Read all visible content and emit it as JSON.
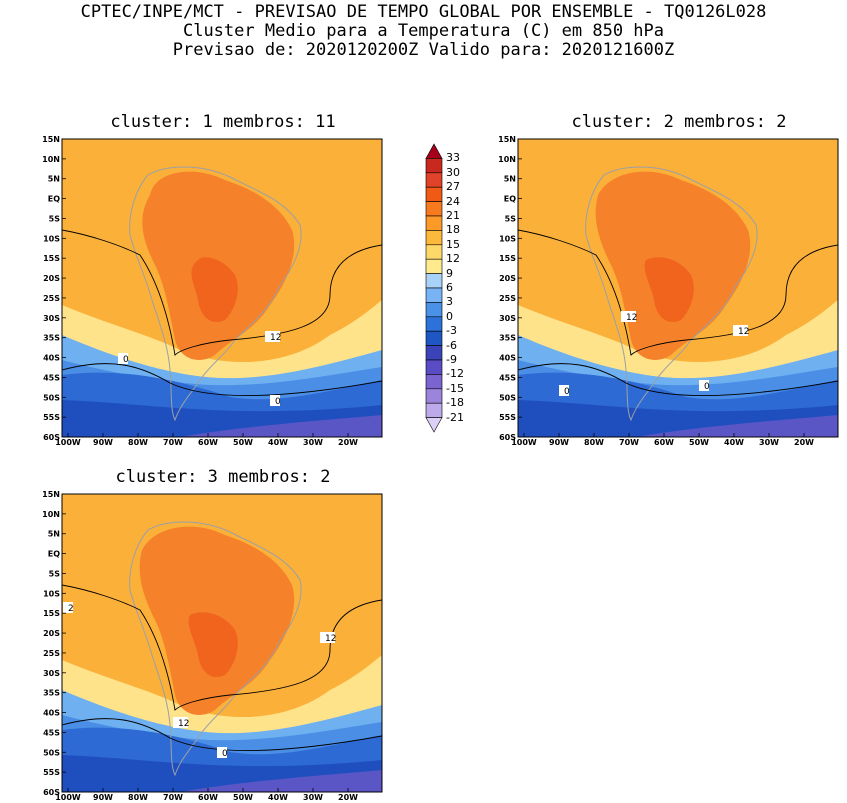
{
  "header": {
    "line1": "CPTEC/INPE/MCT - PREVISAO DE TEMPO GLOBAL POR ENSEMBLE - TQ0126L028",
    "line2": "Cluster Medio para a Temperatura (C) em 850 hPa",
    "line3": "Previsao de: 2020120200Z   Valido para: 2020121600Z"
  },
  "panels": [
    {
      "title": "cluster: 1  membros: 11",
      "contour_labels": [
        "12",
        "0",
        "0"
      ]
    },
    {
      "title": "cluster: 2  membros: 2",
      "contour_labels": [
        "12",
        "12",
        "0",
        "0"
      ]
    },
    {
      "title": "cluster: 3  membros: 2",
      "contour_labels": [
        "2",
        "12",
        "12",
        "0"
      ]
    }
  ],
  "axes": {
    "lat_ticks": [
      "15N",
      "10N",
      "5N",
      "EQ",
      "5S",
      "10S",
      "15S",
      "20S",
      "25S",
      "30S",
      "35S",
      "40S",
      "45S",
      "50S",
      "55S",
      "60S"
    ],
    "lon_ticks": [
      "100W",
      "90W",
      "80W",
      "70W",
      "60W",
      "50W",
      "40W",
      "30W",
      "20W"
    ]
  },
  "colorbar": {
    "labels": [
      "33",
      "30",
      "27",
      "24",
      "21",
      "18",
      "15",
      "12",
      "9",
      "6",
      "3",
      "0",
      "-3",
      "-6",
      "-9",
      "-12",
      "-15",
      "-18",
      "-21"
    ],
    "colors": [
      "#a5001b",
      "#c8281e",
      "#e0422a",
      "#f05a14",
      "#f77a1e",
      "#fb9a28",
      "#fdb93c",
      "#fdd96a",
      "#ffeb8e",
      "#a9d2f8",
      "#78b4f4",
      "#4a92e8",
      "#2c72d8",
      "#1e56c4",
      "#3a44b8",
      "#5a4cc4",
      "#7c64d0",
      "#9c84dc",
      "#bcaaea",
      "#ddd0f6"
    ]
  },
  "colors": {
    "warm_bg": "#fbb03a",
    "hot": "#f5822a",
    "very_hot": "#f0641e",
    "pale": "#ffe38a",
    "cold1": "#6eb0f0",
    "cold2": "#4a8ee6",
    "cold3": "#2e6ad4",
    "cold4": "#1f4fbf",
    "purple": "#5b56c6",
    "coast": "#9aa0a8"
  }
}
